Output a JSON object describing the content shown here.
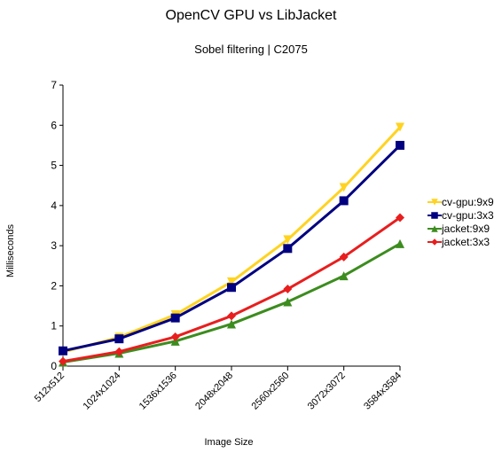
{
  "chart_data": {
    "type": "line",
    "title": "OpenCV GPU vs LibJacket",
    "subtitle": "Sobel filtering | C2075",
    "xlabel": "Image Size",
    "ylabel": "Milliseconds",
    "categories": [
      "512x512",
      "1024x1024",
      "1536x1536",
      "2048x2048",
      "2560x2560",
      "3072x3072",
      "3584x3584"
    ],
    "ylim": [
      0,
      7
    ],
    "yticks": [
      0,
      1,
      2,
      3,
      4,
      5,
      6,
      7
    ],
    "grid": false,
    "legend_position": "right",
    "series": [
      {
        "name": "cv-gpu:9x9",
        "color": "#FFD320",
        "marker": "triangle-down",
        "values": [
          0.35,
          0.72,
          1.28,
          2.1,
          3.15,
          4.45,
          5.95
        ]
      },
      {
        "name": "cv-gpu:3x3",
        "color": "#000080",
        "marker": "square",
        "values": [
          0.38,
          0.68,
          1.2,
          1.96,
          2.93,
          4.12,
          5.5
        ]
      },
      {
        "name": "jacket:9x9",
        "color": "#3C8C1E",
        "marker": "triangle-up",
        "values": [
          0.1,
          0.32,
          0.62,
          1.05,
          1.6,
          2.25,
          3.05
        ]
      },
      {
        "name": "jacket:3x3",
        "color": "#E81E1E",
        "marker": "diamond",
        "values": [
          0.12,
          0.36,
          0.73,
          1.25,
          1.92,
          2.72,
          3.7
        ]
      }
    ]
  }
}
